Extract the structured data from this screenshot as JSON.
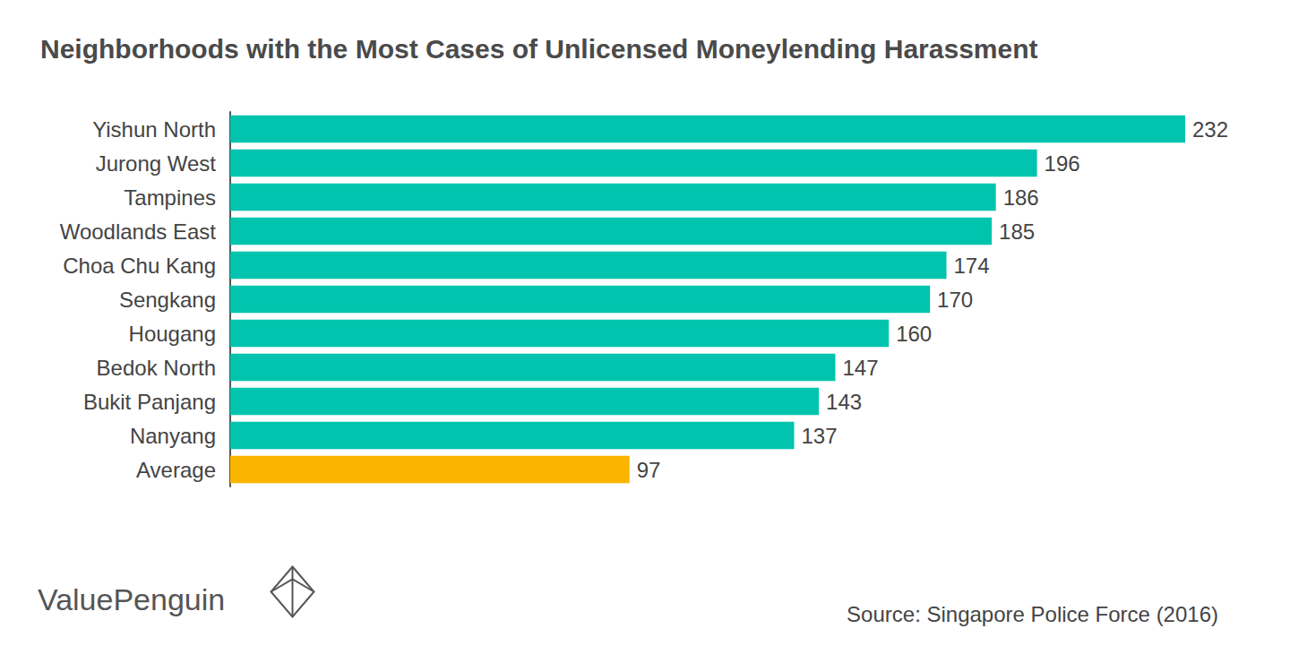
{
  "chart_data": {
    "type": "bar",
    "title": "Neighborhoods with the Most Cases of Unlicensed Moneylending Harassment",
    "categories": [
      "Yishun North",
      "Jurong West",
      "Tampines",
      "Woodlands East",
      "Choa Chu Kang",
      "Sengkang",
      "Hougang",
      "Bedok North",
      "Bukit Panjang",
      "Nanyang",
      "Average"
    ],
    "values": [
      232,
      196,
      186,
      185,
      174,
      170,
      160,
      147,
      143,
      137,
      97
    ],
    "colors": [
      "#00c4ad",
      "#00c4ad",
      "#00c4ad",
      "#00c4ad",
      "#00c4ad",
      "#00c4ad",
      "#00c4ad",
      "#00c4ad",
      "#00c4ad",
      "#00c4ad",
      "#fbb500"
    ],
    "orientation": "horizontal",
    "xlim": [
      0,
      232
    ],
    "data_labels": true,
    "tick_labels": "y",
    "grid": false,
    "annotations": [
      "ValuePenguin",
      "Source: Singapore Police Force (2016)"
    ]
  }
}
